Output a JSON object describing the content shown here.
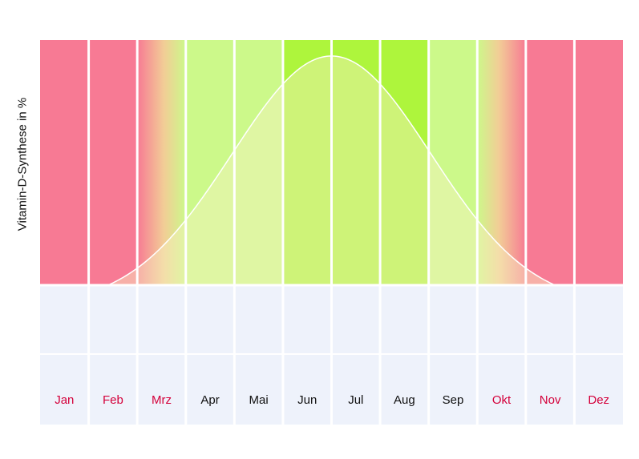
{
  "chart_data": {
    "type": "area",
    "title": "",
    "ylabel": "Vitamin-D-Synthese in %",
    "xlabel": "",
    "categories": [
      "Jan",
      "Feb",
      "Mrz",
      "Apr",
      "Mai",
      "Jun",
      "Jul",
      "Aug",
      "Sep",
      "Okt",
      "Nov",
      "Dez"
    ],
    "month_status": [
      "none",
      "none",
      "partial",
      "good",
      "good",
      "best",
      "best",
      "best",
      "good",
      "partial",
      "none",
      "none"
    ],
    "month_label_colors": [
      "#d4003a",
      "#d4003a",
      "#d4003a",
      "#111111",
      "#111111",
      "#111111",
      "#111111",
      "#111111",
      "#111111",
      "#d4003a",
      "#d4003a",
      "#d4003a"
    ],
    "curve": {
      "description_points_x": [
        1.0,
        1.5,
        2.0,
        2.5,
        3.0,
        3.5,
        4.0,
        4.5,
        5.0,
        5.5,
        6.0,
        6.5,
        7.0,
        7.5,
        8.0,
        8.5,
        9.0,
        9.5,
        10.0
      ],
      "y": [
        0,
        2,
        8,
        20,
        35,
        52,
        68,
        82,
        92,
        98,
        100,
        98,
        92,
        82,
        68,
        52,
        35,
        20,
        8
      ],
      "ylim": [
        0,
        100
      ]
    },
    "colors": {
      "none": "#f77a94",
      "partial_mid": "#f2cd96",
      "good": "#ccf98a",
      "best": "#aef53c",
      "area_fill": "#f2f0b8",
      "axis_band": "#eef2fb"
    },
    "grid": false,
    "legend": "none"
  }
}
